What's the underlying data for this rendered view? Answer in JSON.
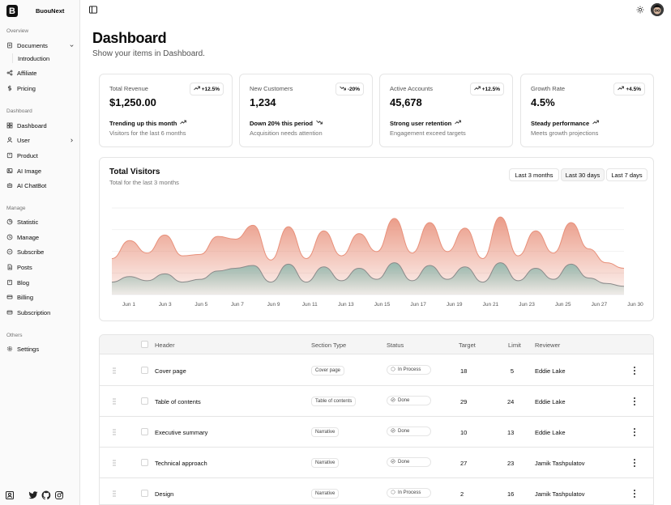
{
  "app": {
    "name": "BuouNext",
    "logo_letter": "B"
  },
  "sidebar": {
    "groups": [
      {
        "label": "Overview",
        "items": [
          {
            "label": "Documents",
            "icon": "file-icon",
            "chevron": "down"
          },
          {
            "label": "Introduction",
            "sub": true
          },
          {
            "label": "Affiliate",
            "icon": "share-icon"
          },
          {
            "label": "Pricing",
            "icon": "dollar-icon"
          }
        ]
      },
      {
        "label": "Dashboard",
        "items": [
          {
            "label": "Dashboard",
            "icon": "grid-icon"
          },
          {
            "label": "User",
            "icon": "user-icon",
            "chevron": "right"
          },
          {
            "label": "Product",
            "icon": "box-icon"
          },
          {
            "label": "AI Image",
            "icon": "image-icon"
          },
          {
            "label": "AI ChatBot",
            "icon": "bot-icon"
          }
        ]
      },
      {
        "label": "Manage",
        "items": [
          {
            "label": "Statistic",
            "icon": "pie-icon"
          },
          {
            "label": "Manage",
            "icon": "clock-icon"
          },
          {
            "label": "Subscribe",
            "icon": "mail-icon"
          },
          {
            "label": "Posts",
            "icon": "doc-icon"
          },
          {
            "label": "Blog",
            "icon": "book-icon"
          },
          {
            "label": "Billing",
            "icon": "card-icon"
          },
          {
            "label": "Subscription",
            "icon": "card-icon"
          }
        ]
      },
      {
        "label": "Others",
        "items": [
          {
            "label": "Settings",
            "icon": "gear-icon"
          }
        ]
      }
    ]
  },
  "header": {
    "title": "Dashboard",
    "subtitle": "Show your items in Dashboard."
  },
  "cards": [
    {
      "label": "Total Revenue",
      "value": "$1,250.00",
      "badge": "+12.5%",
      "badge_dir": "up",
      "trend": "Trending up this month",
      "trend_dir": "up",
      "desc": "Visitors for the last 6 months"
    },
    {
      "label": "New Customers",
      "value": "1,234",
      "badge": "-20%",
      "badge_dir": "down",
      "trend": "Down 20% this period",
      "trend_dir": "down",
      "desc": "Acquisition needs attention"
    },
    {
      "label": "Active Accounts",
      "value": "45,678",
      "badge": "+12.5%",
      "badge_dir": "up",
      "trend": "Strong user retention",
      "trend_dir": "up",
      "desc": "Engagement exceed targets"
    },
    {
      "label": "Growth Rate",
      "value": "4.5%",
      "badge": "+4.5%",
      "badge_dir": "up",
      "trend": "Steady performance",
      "trend_dir": "up",
      "desc": "Meets growth projections"
    }
  ],
  "visitors": {
    "title": "Total Visitors",
    "subtitle": "Total for the last 3 months",
    "ranges": [
      "Last 3 months",
      "Last 30 days",
      "Last 7 days"
    ],
    "active_range": "Last 30 days",
    "x_ticks": [
      "Jun 1",
      "Jun 3",
      "Jun 5",
      "Jun 7",
      "Jun 9",
      "Jun 11",
      "Jun 13",
      "Jun 15",
      "Jun 17",
      "Jun 19",
      "Jun 21",
      "Jun 23",
      "Jun 25",
      "Jun 27",
      "Jun 30"
    ],
    "desktop_color": "#e8907a",
    "mobile_color": "#7fb3a8"
  },
  "chart_data": {
    "type": "area",
    "x": [
      "Jun 1",
      "Jun 2",
      "Jun 3",
      "Jun 4",
      "Jun 5",
      "Jun 6",
      "Jun 7",
      "Jun 8",
      "Jun 9",
      "Jun 10",
      "Jun 11",
      "Jun 12",
      "Jun 13",
      "Jun 14",
      "Jun 15",
      "Jun 16",
      "Jun 17",
      "Jun 18",
      "Jun 19",
      "Jun 20",
      "Jun 21",
      "Jun 22",
      "Jun 23",
      "Jun 24",
      "Jun 25",
      "Jun 26",
      "Jun 27",
      "Jun 28",
      "Jun 29",
      "Jun 30"
    ],
    "series": [
      {
        "values": [
          52,
          78,
          60,
          86,
          56,
          58,
          84,
          80,
          100,
          50,
          98,
          52,
          92,
          56,
          88,
          62,
          110,
          60,
          104,
          62,
          96,
          52,
          112,
          56,
          92,
          60,
          104,
          66,
          46,
          38
        ]
      },
      {
        "values": [
          18,
          26,
          20,
          30,
          18,
          22,
          34,
          38,
          42,
          18,
          44,
          18,
          40,
          20,
          38,
          22,
          46,
          20,
          42,
          22,
          40,
          18,
          46,
          20,
          38,
          22,
          44,
          24,
          16,
          12
        ]
      }
    ],
    "ylim": [
      0,
      125
    ],
    "grid": true
  },
  "table": {
    "columns": [
      "Header",
      "Section Type",
      "Status",
      "Target",
      "Limit",
      "Reviewer"
    ],
    "rows": [
      {
        "header": "Cover page",
        "type": "Cover page",
        "status": "In Process",
        "target": "18",
        "limit": "5",
        "reviewer": "Eddie Lake"
      },
      {
        "header": "Table of contents",
        "type": "Table of contents",
        "status": "Done",
        "target": "29",
        "limit": "24",
        "reviewer": "Eddie Lake"
      },
      {
        "header": "Executive summary",
        "type": "Narrative",
        "status": "Done",
        "target": "10",
        "limit": "13",
        "reviewer": "Eddie Lake"
      },
      {
        "header": "Technical approach",
        "type": "Narrative",
        "status": "Done",
        "target": "27",
        "limit": "23",
        "reviewer": "Jamik Tashpulatov"
      },
      {
        "header": "Design",
        "type": "Narrative",
        "status": "In Process",
        "target": "2",
        "limit": "16",
        "reviewer": "Jamik Tashpulatov"
      }
    ]
  }
}
